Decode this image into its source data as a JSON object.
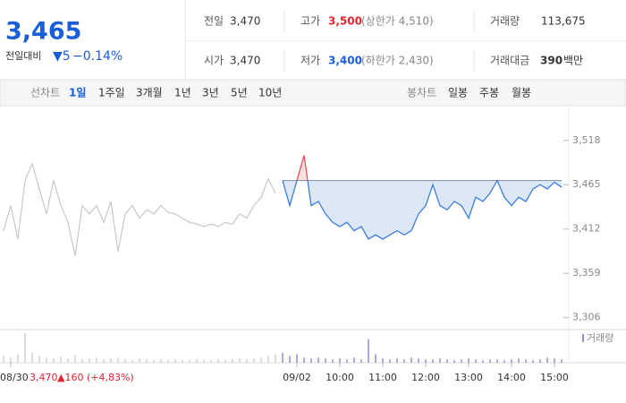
{
  "header": {
    "price": "3,465",
    "change_label": "전일대비",
    "change": "▼5",
    "change_rate": "−0.14%",
    "stats": [
      {
        "label": "전일",
        "value": "3,470"
      },
      {
        "label": "고가",
        "value": "3,500",
        "note": "(상한가 4,510)"
      },
      {
        "label": "거래량",
        "value": "113,675"
      },
      {
        "label": "시가",
        "value": "3,470"
      },
      {
        "label": "저가",
        "value": "3,400",
        "note": "(하한가 2,430)"
      },
      {
        "label": "거래대금",
        "value": "390",
        "unit": "백만"
      }
    ]
  },
  "toolbar": {
    "line_label": "선차트",
    "line_periods": [
      "1일",
      "1주일",
      "3개월",
      "1년",
      "3년",
      "5년",
      "10년"
    ],
    "candle_label": "봉차트",
    "candle_periods": [
      "일봉",
      "주봉",
      "월봉"
    ]
  },
  "note": {
    "price": "3,470",
    "change": "▲160 (+4,83%)"
  },
  "chart_data": [
    {
      "type": "line",
      "categories": [
        null,
        "08/30",
        null,
        null,
        null,
        null,
        null,
        null,
        null,
        null,
        null,
        null,
        null,
        null,
        null,
        null,
        null,
        null,
        null,
        null,
        null,
        null,
        null,
        null,
        null,
        null,
        null,
        null,
        null,
        null,
        null,
        null,
        null,
        null,
        null,
        null,
        null,
        null,
        null,
        null,
        null,
        "09/02",
        null,
        null,
        null,
        null,
        null,
        "10:00",
        null,
        null,
        null,
        null,
        null,
        "11:00",
        null,
        null,
        null,
        null,
        null,
        "12:00",
        null,
        null,
        null,
        null,
        null,
        "13:00",
        null,
        null,
        null,
        null,
        null,
        "14:00",
        null,
        null,
        null,
        null,
        null,
        "15:00",
        null
      ],
      "series": [
        {
          "color": "#c8c8c8",
          "values": [
            3410,
            3440,
            3400,
            3470,
            3490,
            3460,
            3430,
            3470,
            3440,
            3420,
            3380,
            3440,
            3430,
            3440,
            3420,
            3445,
            3385,
            3430,
            3440,
            3425,
            3435,
            3430,
            3440,
            3432,
            3430,
            3425,
            3420,
            3418,
            3415,
            3418,
            3415,
            3420,
            3418,
            3430,
            3425,
            3440,
            3450,
            3472,
            3455,
            null,
            null,
            null,
            null,
            null,
            null,
            null,
            null,
            null,
            null,
            null,
            null,
            null,
            null,
            null,
            null,
            null,
            null,
            null,
            null,
            null,
            null,
            null,
            null,
            null,
            null,
            null,
            null,
            null,
            null,
            null,
            null,
            null,
            null,
            null,
            null,
            null,
            null,
            null,
            null
          ]
        },
        {
          "color": "#3d7de0",
          "up_color": "#e8505b",
          "fill": "#dde8f7",
          "up_fill": "#fbe0e0",
          "values": [
            null,
            null,
            null,
            null,
            null,
            null,
            null,
            null,
            null,
            null,
            null,
            null,
            null,
            null,
            null,
            null,
            null,
            null,
            null,
            null,
            null,
            null,
            null,
            null,
            null,
            null,
            null,
            null,
            null,
            null,
            null,
            null,
            null,
            null,
            null,
            null,
            null,
            null,
            null,
            3470,
            3440,
            3470,
            3500,
            3440,
            3445,
            3430,
            3420,
            3415,
            3420,
            3410,
            3415,
            3400,
            3405,
            3400,
            3405,
            3410,
            3405,
            3410,
            3430,
            3440,
            3465,
            3440,
            3435,
            3445,
            3440,
            3425,
            3450,
            3445,
            3455,
            3470,
            3450,
            3440,
            3450,
            3445,
            3460,
            3465,
            3460,
            3468,
            3462
          ]
        }
      ],
      "baseline": 3470,
      "ylim": [
        3295,
        3552
      ],
      "yticks": [
        {
          "value": 3306,
          "label": "3,306"
        },
        {
          "value": 3359,
          "label": "3,359"
        },
        {
          "value": 3412,
          "label": "3,412"
        },
        {
          "value": 3465,
          "label": "3,465"
        },
        {
          "value": 3518,
          "label": "3,518"
        }
      ]
    },
    {
      "type": "bar",
      "series": [
        {
          "color": "#cfcfcf",
          "values": [
            8,
            6,
            10,
            35,
            12,
            8,
            6,
            5,
            7,
            5,
            9,
            4,
            5,
            6,
            4,
            5,
            6,
            4,
            3,
            5,
            4,
            3,
            4,
            3,
            4,
            3,
            3,
            4,
            3,
            3,
            4,
            3,
            4,
            5,
            4,
            5,
            6,
            8,
            10,
            null,
            null,
            null,
            null,
            null,
            null,
            null,
            null,
            null,
            null,
            null,
            null,
            null,
            null,
            null,
            null,
            null,
            null,
            null,
            null,
            null,
            null,
            null,
            null,
            null,
            null,
            null,
            null,
            null,
            null,
            null,
            null,
            null,
            null,
            null,
            null,
            null,
            null,
            null,
            null
          ]
        },
        {
          "name": "거래량",
          "color": "#9c8ad6",
          "values": [
            null,
            null,
            null,
            null,
            null,
            null,
            null,
            null,
            null,
            null,
            null,
            null,
            null,
            null,
            null,
            null,
            null,
            null,
            null,
            null,
            null,
            null,
            null,
            null,
            null,
            null,
            null,
            null,
            null,
            null,
            null,
            null,
            null,
            null,
            null,
            null,
            null,
            null,
            null,
            12,
            8,
            10,
            6,
            5,
            6,
            5,
            4,
            5,
            4,
            6,
            4,
            28,
            10,
            5,
            4,
            5,
            4,
            6,
            5,
            4,
            4,
            5,
            4,
            3,
            4,
            5,
            4,
            3,
            4,
            4,
            3,
            4,
            5,
            4,
            3,
            4,
            6,
            5,
            4
          ]
        }
      ]
    }
  ]
}
